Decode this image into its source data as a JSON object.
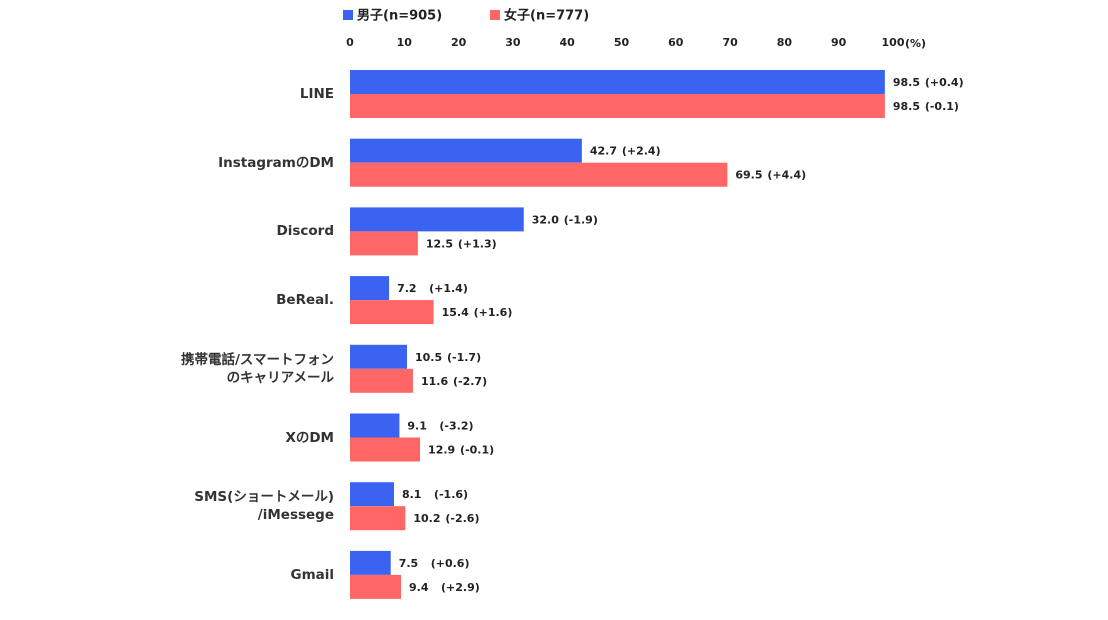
{
  "chart_data": {
    "type": "bar",
    "orientation": "horizontal",
    "categories": [
      "LINE",
      "InstagramのDM",
      "Discord",
      "BeReal.",
      "携帯電話/スマートフォン\nのキャリアメール",
      "XのDM",
      "SMS(ショートメール)\n/iMessege",
      "Gmail"
    ],
    "series": [
      {
        "name": "男子(n=905)",
        "color": "#3a63f2",
        "values": [
          98.5,
          42.7,
          32.0,
          7.2,
          10.5,
          9.1,
          8.1,
          7.5
        ],
        "value_labels": [
          "98.5",
          "42.7",
          "32.0",
          "7.2",
          "10.5",
          "9.1",
          "8.1",
          "7.5"
        ],
        "change_labels": [
          "(+0.4)",
          "(+2.4)",
          "(-1.9)",
          "(+1.4)",
          "(-1.7)",
          "(-3.2)",
          "(-1.6)",
          "(+0.6)"
        ]
      },
      {
        "name": "女子(n=777)",
        "color": "#ff6666",
        "values": [
          98.5,
          69.5,
          12.5,
          15.4,
          11.6,
          12.9,
          10.2,
          9.4
        ],
        "value_labels": [
          "98.5",
          "69.5",
          "12.5",
          "15.4",
          "11.6",
          "12.9",
          "10.2",
          "9.4"
        ],
        "change_labels": [
          "(-0.1)",
          "(+4.4)",
          "(+1.3)",
          "(+1.6)",
          "(-2.7)",
          "(-0.1)",
          "(-2.6)",
          "(+2.9)"
        ]
      }
    ],
    "xlim": [
      0,
      100
    ],
    "xticks": [
      0,
      10,
      20,
      30,
      40,
      50,
      60,
      70,
      80,
      90,
      100
    ],
    "x_unit": "(%)",
    "grid": false
  }
}
